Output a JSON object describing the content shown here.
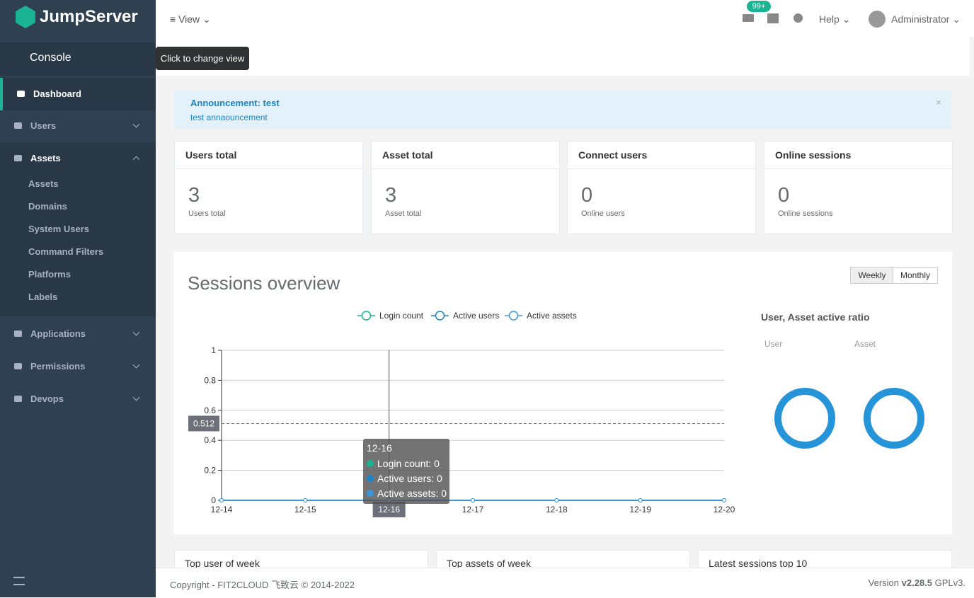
{
  "sidebar": {
    "brand": "JumpServer",
    "console": "Console",
    "menu": [
      {
        "label": "Dashboard"
      },
      {
        "label": "Users"
      },
      {
        "label": "Assets",
        "children": [
          "Assets",
          "Domains",
          "System Users",
          "Command Filters",
          "Platforms",
          "Labels"
        ]
      },
      {
        "label": "Applications"
      },
      {
        "label": "Permissions"
      },
      {
        "label": "Devops"
      }
    ]
  },
  "header": {
    "view": "View",
    "tooltip": "Click to change view",
    "badge": "99+",
    "help": "Help",
    "user": "Administrator"
  },
  "announcement": {
    "title": "Announcement: test",
    "text": "test annaouncement"
  },
  "cards": [
    {
      "title": "Users total",
      "value": 3,
      "label": "Users total"
    },
    {
      "title": "Asset total",
      "value": 3,
      "label": "Asset total"
    },
    {
      "title": "Connect users",
      "value": 0,
      "label": "Online users"
    },
    {
      "title": "Online sessions",
      "value": 0,
      "label": "Online sessions"
    }
  ],
  "sessions": {
    "title": "Sessions overview",
    "buttons": [
      "Weekly",
      "Monthly"
    ],
    "ratio_title": "User, Asset active ratio",
    "ratio_labels": [
      "User",
      "Asset"
    ]
  },
  "chart_data": {
    "type": "line",
    "categories": [
      "12-14",
      "12-15",
      "12-16",
      "12-17",
      "12-18",
      "12-19",
      "12-20"
    ],
    "series": [
      {
        "name": "Login count",
        "color": "#1ab394",
        "values": [
          0,
          0,
          0,
          0,
          0,
          0,
          0
        ]
      },
      {
        "name": "Active users",
        "color": "#1c84c6",
        "values": [
          0,
          0,
          0,
          0,
          0,
          0,
          0
        ]
      },
      {
        "name": "Active assets",
        "color": "#3c97d9",
        "values": [
          0,
          0,
          0,
          0,
          0,
          0,
          0
        ]
      }
    ],
    "ylim": [
      0,
      1
    ],
    "yticks": [
      0,
      0.2,
      0.4,
      0.6,
      0.8,
      1
    ],
    "grid": true,
    "legend": "top",
    "axis_pointer_y": 0.512,
    "tooltip": {
      "title": "12-16",
      "rows": [
        "Login count: 0",
        "Active users: 0",
        "Active assets: 0"
      ]
    }
  },
  "panels": [
    "Top user of week",
    "Top assets of week",
    "Latest sessions top 10"
  ],
  "footer": {
    "copyright": "Copyright - FIT2CLOUD 飞致云 © 2014-2022",
    "version_prefix": "Version",
    "version": "v2.28.5",
    "license": "GPLv3."
  }
}
